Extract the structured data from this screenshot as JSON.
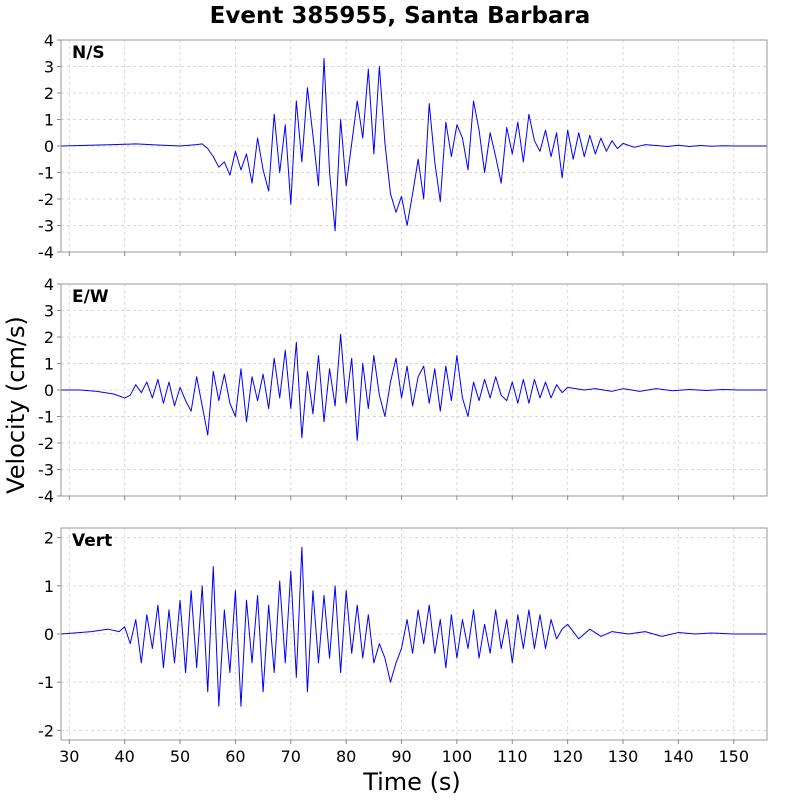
{
  "chart_data": {
    "type": "line",
    "title": "Event 385955, Santa Barbara",
    "xlabel": "Time (s)",
    "ylabel": "Velocity (cm/s)",
    "xlim": [
      28.5,
      156
    ],
    "x_ticks": [
      30,
      40,
      50,
      60,
      70,
      80,
      90,
      100,
      110,
      120,
      130,
      140,
      150
    ],
    "grid": true,
    "line_color": "#0000ff",
    "panels": [
      {
        "label": "N/S",
        "ylim": [
          -4,
          4
        ],
        "y_ticks": [
          4,
          3,
          2,
          1,
          0,
          -1,
          -2,
          -3,
          -4
        ],
        "points": [
          [
            28.5,
            0
          ],
          [
            38,
            0.05
          ],
          [
            42,
            0.08
          ],
          [
            46,
            0.04
          ],
          [
            50,
            0
          ],
          [
            53,
            0.05
          ],
          [
            54,
            0.08
          ],
          [
            55,
            -0.1
          ],
          [
            56,
            -0.4
          ],
          [
            57,
            -0.8
          ],
          [
            58,
            -0.6
          ],
          [
            59,
            -1.1
          ],
          [
            60,
            -0.2
          ],
          [
            61,
            -0.9
          ],
          [
            62,
            -0.3
          ],
          [
            63,
            -1.4
          ],
          [
            64,
            0.3
          ],
          [
            65,
            -0.9
          ],
          [
            66,
            -1.7
          ],
          [
            67,
            1.2
          ],
          [
            68,
            -1.0
          ],
          [
            69,
            0.8
          ],
          [
            70,
            -2.2
          ],
          [
            71,
            1.7
          ],
          [
            72,
            -0.6
          ],
          [
            73,
            2.2
          ],
          [
            74,
            0.4
          ],
          [
            75,
            -1.5
          ],
          [
            76,
            3.3
          ],
          [
            77,
            -1.0
          ],
          [
            78,
            -3.2
          ],
          [
            79,
            1.0
          ],
          [
            80,
            -1.5
          ],
          [
            81,
            0.1
          ],
          [
            82,
            1.7
          ],
          [
            83,
            0.3
          ],
          [
            84,
            2.9
          ],
          [
            85,
            -0.3
          ],
          [
            86,
            3.0
          ],
          [
            87,
            0.1
          ],
          [
            88,
            -1.8
          ],
          [
            89,
            -2.5
          ],
          [
            90,
            -1.9
          ],
          [
            91,
            -3.0
          ],
          [
            92,
            -1.8
          ],
          [
            93,
            -0.5
          ],
          [
            94,
            -2.0
          ],
          [
            95,
            1.6
          ],
          [
            96,
            -0.6
          ],
          [
            97,
            -2.1
          ],
          [
            98,
            0.9
          ],
          [
            99,
            -0.4
          ],
          [
            100,
            0.8
          ],
          [
            101,
            0.3
          ],
          [
            102,
            -0.9
          ],
          [
            103,
            1.7
          ],
          [
            104,
            0.6
          ],
          [
            105,
            -1.0
          ],
          [
            106,
            0.5
          ],
          [
            107,
            -0.4
          ],
          [
            108,
            -1.4
          ],
          [
            109,
            0.7
          ],
          [
            110,
            -0.3
          ],
          [
            111,
            0.9
          ],
          [
            112,
            -0.6
          ],
          [
            113,
            1.2
          ],
          [
            114,
            0.2
          ],
          [
            115,
            -0.2
          ],
          [
            116,
            0.6
          ],
          [
            117,
            -0.4
          ],
          [
            118,
            0.5
          ],
          [
            119,
            -1.2
          ],
          [
            120,
            0.6
          ],
          [
            121,
            -0.5
          ],
          [
            122,
            0.5
          ],
          [
            123,
            -0.4
          ],
          [
            124,
            0.4
          ],
          [
            125,
            -0.3
          ],
          [
            126,
            0.3
          ],
          [
            127,
            -0.2
          ],
          [
            128,
            0.2
          ],
          [
            129,
            -0.1
          ],
          [
            130,
            0.1
          ],
          [
            132,
            -0.05
          ],
          [
            134,
            0.05
          ],
          [
            136,
            0.02
          ],
          [
            138,
            -0.02
          ],
          [
            140,
            0.03
          ],
          [
            142,
            -0.02
          ],
          [
            144,
            0.02
          ],
          [
            146,
            -0.01
          ],
          [
            148,
            0.01
          ],
          [
            150,
            0
          ],
          [
            153,
            0
          ],
          [
            156,
            0
          ]
        ]
      },
      {
        "label": "E/W",
        "ylim": [
          -4,
          4
        ],
        "y_ticks": [
          4,
          3,
          2,
          1,
          0,
          -1,
          -2,
          -3,
          -4
        ],
        "points": [
          [
            28.5,
            0
          ],
          [
            32,
            0
          ],
          [
            35,
            -0.05
          ],
          [
            38,
            -0.15
          ],
          [
            40,
            -0.3
          ],
          [
            41,
            -0.2
          ],
          [
            42,
            0.2
          ],
          [
            43,
            -0.1
          ],
          [
            44,
            0.3
          ],
          [
            45,
            -0.3
          ],
          [
            46,
            0.4
          ],
          [
            47,
            -0.5
          ],
          [
            48,
            0.3
          ],
          [
            49,
            -0.6
          ],
          [
            50,
            0.1
          ],
          [
            51,
            -0.4
          ],
          [
            52,
            -0.8
          ],
          [
            53,
            0.5
          ],
          [
            54,
            -0.6
          ],
          [
            55,
            -1.7
          ],
          [
            56,
            0.7
          ],
          [
            57,
            -0.4
          ],
          [
            58,
            0.6
          ],
          [
            59,
            -0.5
          ],
          [
            60,
            -1.0
          ],
          [
            61,
            0.8
          ],
          [
            62,
            -1.2
          ],
          [
            63,
            0.5
          ],
          [
            64,
            -0.4
          ],
          [
            65,
            0.6
          ],
          [
            66,
            -0.7
          ],
          [
            67,
            1.2
          ],
          [
            68,
            -0.3
          ],
          [
            69,
            1.5
          ],
          [
            70,
            -0.7
          ],
          [
            71,
            1.8
          ],
          [
            72,
            -1.8
          ],
          [
            73,
            0.7
          ],
          [
            74,
            -0.9
          ],
          [
            75,
            1.3
          ],
          [
            76,
            -1.2
          ],
          [
            77,
            0.8
          ],
          [
            78,
            -0.6
          ],
          [
            79,
            2.1
          ],
          [
            80,
            -0.5
          ],
          [
            81,
            1.2
          ],
          [
            82,
            -1.9
          ],
          [
            83,
            1.0
          ],
          [
            84,
            -0.7
          ],
          [
            85,
            1.3
          ],
          [
            86,
            -0.2
          ],
          [
            87,
            -1.0
          ],
          [
            88,
            0.3
          ],
          [
            89,
            1.2
          ],
          [
            90,
            -0.3
          ],
          [
            91,
            0.9
          ],
          [
            92,
            -0.6
          ],
          [
            93,
            0.5
          ],
          [
            94,
            0.9
          ],
          [
            95,
            -0.5
          ],
          [
            96,
            0.8
          ],
          [
            97,
            -0.8
          ],
          [
            98,
            0.9
          ],
          [
            99,
            -0.4
          ],
          [
            100,
            1.3
          ],
          [
            101,
            -0.3
          ],
          [
            102,
            -1.0
          ],
          [
            103,
            0.3
          ],
          [
            104,
            -0.4
          ],
          [
            105,
            0.4
          ],
          [
            106,
            -0.3
          ],
          [
            107,
            0.5
          ],
          [
            108,
            -0.2
          ],
          [
            109,
            -0.4
          ],
          [
            110,
            0.3
          ],
          [
            111,
            -0.5
          ],
          [
            112,
            0.4
          ],
          [
            113,
            -0.5
          ],
          [
            114,
            0.4
          ],
          [
            115,
            -0.3
          ],
          [
            116,
            0.3
          ],
          [
            117,
            -0.3
          ],
          [
            118,
            0.2
          ],
          [
            119,
            -0.1
          ],
          [
            120,
            0.1
          ],
          [
            123,
            0
          ],
          [
            125,
            0.05
          ],
          [
            128,
            -0.05
          ],
          [
            130,
            0.05
          ],
          [
            133,
            -0.05
          ],
          [
            136,
            0.05
          ],
          [
            139,
            -0.03
          ],
          [
            142,
            0.02
          ],
          [
            145,
            -0.02
          ],
          [
            148,
            0.02
          ],
          [
            151,
            0
          ],
          [
            156,
            0
          ]
        ]
      },
      {
        "label": "Vert",
        "ylim": [
          -2.2,
          2.2
        ],
        "y_ticks": [
          2,
          1,
          0,
          -1,
          -2
        ],
        "points": [
          [
            28.5,
            0
          ],
          [
            34,
            0.05
          ],
          [
            37,
            0.1
          ],
          [
            39,
            0.05
          ],
          [
            40,
            0.15
          ],
          [
            41,
            -0.2
          ],
          [
            42,
            0.3
          ],
          [
            43,
            -0.6
          ],
          [
            44,
            0.4
          ],
          [
            45,
            -0.3
          ],
          [
            46,
            0.6
          ],
          [
            47,
            -0.7
          ],
          [
            48,
            0.5
          ],
          [
            49,
            -0.6
          ],
          [
            50,
            0.7
          ],
          [
            51,
            -0.8
          ],
          [
            52,
            0.9
          ],
          [
            53,
            -0.7
          ],
          [
            54,
            1.0
          ],
          [
            55,
            -1.2
          ],
          [
            56,
            1.4
          ],
          [
            57,
            -1.5
          ],
          [
            58,
            0.5
          ],
          [
            59,
            -0.8
          ],
          [
            60,
            0.9
          ],
          [
            61,
            -1.5
          ],
          [
            62,
            0.7
          ],
          [
            63,
            -0.6
          ],
          [
            64,
            0.8
          ],
          [
            65,
            -1.2
          ],
          [
            66,
            0.6
          ],
          [
            67,
            -0.8
          ],
          [
            68,
            1.1
          ],
          [
            69,
            -0.6
          ],
          [
            70,
            1.3
          ],
          [
            71,
            -0.9
          ],
          [
            72,
            1.8
          ],
          [
            73,
            -1.2
          ],
          [
            74,
            0.9
          ],
          [
            75,
            -0.6
          ],
          [
            76,
            0.8
          ],
          [
            77,
            -0.5
          ],
          [
            78,
            1.0
          ],
          [
            79,
            -0.8
          ],
          [
            80,
            0.9
          ],
          [
            81,
            -0.4
          ],
          [
            82,
            0.6
          ],
          [
            83,
            -0.5
          ],
          [
            84,
            0.4
          ],
          [
            85,
            -0.6
          ],
          [
            86,
            -0.2
          ],
          [
            87,
            -0.5
          ],
          [
            88,
            -1.0
          ],
          [
            89,
            -0.6
          ],
          [
            90,
            -0.3
          ],
          [
            91,
            0.3
          ],
          [
            92,
            -0.4
          ],
          [
            93,
            0.5
          ],
          [
            94,
            -0.2
          ],
          [
            95,
            0.6
          ],
          [
            96,
            -0.4
          ],
          [
            97,
            0.3
          ],
          [
            98,
            -0.7
          ],
          [
            99,
            0.4
          ],
          [
            100,
            -0.5
          ],
          [
            101,
            0.3
          ],
          [
            102,
            -0.3
          ],
          [
            103,
            0.5
          ],
          [
            104,
            -0.5
          ],
          [
            105,
            0.2
          ],
          [
            106,
            -0.4
          ],
          [
            107,
            0.5
          ],
          [
            108,
            -0.3
          ],
          [
            109,
            0.3
          ],
          [
            110,
            -0.6
          ],
          [
            111,
            0.4
          ],
          [
            112,
            -0.3
          ],
          [
            113,
            0.5
          ],
          [
            114,
            -0.3
          ],
          [
            115,
            0.4
          ],
          [
            116,
            -0.3
          ],
          [
            117,
            0.3
          ],
          [
            118,
            -0.1
          ],
          [
            119,
            0.1
          ],
          [
            120,
            0.2
          ],
          [
            122,
            -0.1
          ],
          [
            124,
            0.1
          ],
          [
            126,
            -0.05
          ],
          [
            128,
            0.05
          ],
          [
            131,
            0
          ],
          [
            134,
            0.05
          ],
          [
            137,
            -0.05
          ],
          [
            140,
            0.03
          ],
          [
            143,
            0
          ],
          [
            146,
            0.02
          ],
          [
            150,
            0
          ],
          [
            156,
            0
          ]
        ]
      }
    ]
  }
}
